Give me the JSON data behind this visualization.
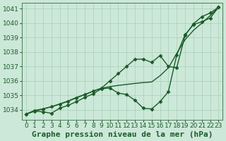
{
  "xlabel": "Graphe pression niveau de la mer (hPa)",
  "background_color": "#cce8d8",
  "grid_color": "#aacfbb",
  "line_color": "#1a5c28",
  "xlim": [
    -0.5,
    23.5
  ],
  "ylim": [
    1033.3,
    1041.4
  ],
  "yticks": [
    1034,
    1035,
    1036,
    1037,
    1038,
    1039,
    1040,
    1041
  ],
  "xticks": [
    0,
    1,
    2,
    3,
    4,
    5,
    6,
    7,
    8,
    9,
    10,
    11,
    12,
    13,
    14,
    15,
    16,
    17,
    18,
    19,
    20,
    21,
    22,
    23
  ],
  "line1_x": [
    0,
    1,
    2,
    3,
    4,
    5,
    6,
    7,
    8,
    9,
    10,
    11,
    12,
    13,
    14,
    15,
    16,
    17,
    18,
    19,
    20,
    21,
    22,
    23
  ],
  "line1_y": [
    1033.7,
    1033.9,
    1033.85,
    1033.75,
    1034.1,
    1034.3,
    1034.55,
    1034.85,
    1035.1,
    1035.45,
    1035.5,
    1035.15,
    1035.05,
    1034.65,
    1034.1,
    1034.05,
    1034.55,
    1035.25,
    1037.8,
    1039.2,
    1039.9,
    1040.1,
    1040.35,
    1041.1
  ],
  "line2_x": [
    0,
    1,
    2,
    3,
    4,
    5,
    6,
    7,
    8,
    9,
    10,
    11,
    12,
    13,
    14,
    15,
    16,
    17,
    18,
    19,
    20,
    21,
    22,
    23
  ],
  "line2_y": [
    1033.7,
    1033.9,
    1034.05,
    1034.2,
    1034.4,
    1034.6,
    1034.85,
    1035.05,
    1035.28,
    1035.48,
    1035.6,
    1035.68,
    1035.75,
    1035.82,
    1035.88,
    1035.92,
    1036.35,
    1036.9,
    1037.9,
    1038.85,
    1039.5,
    1040.0,
    1040.52,
    1041.1
  ],
  "line3_x": [
    0,
    1,
    2,
    3,
    4,
    5,
    6,
    7,
    8,
    9,
    10,
    11,
    12,
    13,
    14,
    15,
    16,
    17,
    18,
    19,
    20,
    21,
    22,
    23
  ],
  "line3_y": [
    1033.7,
    1033.95,
    1034.05,
    1034.2,
    1034.38,
    1034.58,
    1034.82,
    1035.05,
    1035.28,
    1035.5,
    1036.0,
    1036.5,
    1037.0,
    1037.5,
    1037.5,
    1037.28,
    1037.75,
    1037.0,
    1036.9,
    1039.15,
    1039.95,
    1040.45,
    1040.7,
    1041.1
  ],
  "marker": "D",
  "marker_size": 2.5,
  "linewidth": 1.0,
  "xlabel_fontsize": 8,
  "tick_fontsize": 6.5
}
